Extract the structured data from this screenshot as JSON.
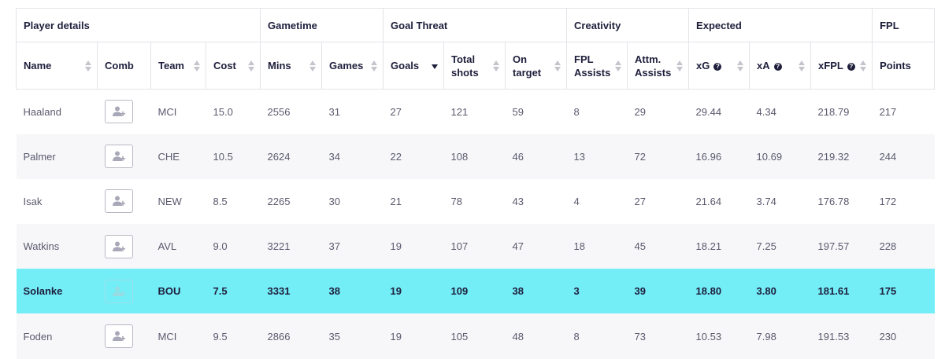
{
  "groups": [
    {
      "label": "Player details",
      "span": 4
    },
    {
      "label": "Gametime",
      "span": 2
    },
    {
      "label": "Goal Threat",
      "span": 3
    },
    {
      "label": "Creativity",
      "span": 2
    },
    {
      "label": "Expected",
      "span": 3
    },
    {
      "label": "FPL",
      "span": 1
    }
  ],
  "columns": [
    {
      "key": "name",
      "label": "Name",
      "sortable": true,
      "info": false
    },
    {
      "key": "comb",
      "label": "Comb",
      "sortable": false,
      "info": false
    },
    {
      "key": "team",
      "label": "Team",
      "sortable": true,
      "info": false
    },
    {
      "key": "cost",
      "label": "Cost",
      "sortable": true,
      "info": false
    },
    {
      "key": "mins",
      "label": "Mins",
      "sortable": true,
      "info": false
    },
    {
      "key": "games",
      "label": "Games",
      "sortable": true,
      "info": false
    },
    {
      "key": "goals",
      "label": "Goals",
      "sortable": true,
      "sorted": "desc",
      "info": false
    },
    {
      "key": "total_shots",
      "label": "Total shots",
      "sortable": true,
      "info": false
    },
    {
      "key": "on_target",
      "label": "On target",
      "sortable": true,
      "info": false
    },
    {
      "key": "fpl_assists",
      "label": "FPL Assists",
      "sortable": true,
      "info": false
    },
    {
      "key": "attm_assists",
      "label": "Attm. Assists",
      "sortable": true,
      "info": false
    },
    {
      "key": "xg",
      "label": "xG",
      "sortable": true,
      "info": true
    },
    {
      "key": "xa",
      "label": "xA",
      "sortable": true,
      "info": true
    },
    {
      "key": "xfpl",
      "label": "xFPL",
      "sortable": true,
      "info": true
    },
    {
      "key": "points",
      "label": "Points",
      "sortable": false,
      "info": false
    }
  ],
  "info_glyph": "?",
  "highlight_color": "#73edf6",
  "rows": [
    {
      "name": "Haaland",
      "team": "MCI",
      "cost": "15.0",
      "mins": "2556",
      "games": "31",
      "goals": "27",
      "total_shots": "121",
      "on_target": "59",
      "fpl_assists": "8",
      "attm_assists": "29",
      "xg": "29.44",
      "xa": "4.34",
      "xfpl": "218.79",
      "points": "217",
      "highlighted": false
    },
    {
      "name": "Palmer",
      "team": "CHE",
      "cost": "10.5",
      "mins": "2624",
      "games": "34",
      "goals": "22",
      "total_shots": "108",
      "on_target": "46",
      "fpl_assists": "13",
      "attm_assists": "72",
      "xg": "16.96",
      "xa": "10.69",
      "xfpl": "219.32",
      "points": "244",
      "highlighted": false
    },
    {
      "name": "Isak",
      "team": "NEW",
      "cost": "8.5",
      "mins": "2265",
      "games": "30",
      "goals": "21",
      "total_shots": "78",
      "on_target": "43",
      "fpl_assists": "4",
      "attm_assists": "27",
      "xg": "21.64",
      "xa": "3.74",
      "xfpl": "176.78",
      "points": "172",
      "highlighted": false
    },
    {
      "name": "Watkins",
      "team": "AVL",
      "cost": "9.0",
      "mins": "3221",
      "games": "37",
      "goals": "19",
      "total_shots": "107",
      "on_target": "47",
      "fpl_assists": "18",
      "attm_assists": "45",
      "xg": "18.21",
      "xa": "7.25",
      "xfpl": "197.57",
      "points": "228",
      "highlighted": false
    },
    {
      "name": "Solanke",
      "team": "BOU",
      "cost": "7.5",
      "mins": "3331",
      "games": "38",
      "goals": "19",
      "total_shots": "109",
      "on_target": "38",
      "fpl_assists": "3",
      "attm_assists": "39",
      "xg": "18.80",
      "xa": "3.80",
      "xfpl": "181.61",
      "points": "175",
      "highlighted": true
    },
    {
      "name": "Foden",
      "team": "MCI",
      "cost": "9.5",
      "mins": "2866",
      "games": "35",
      "goals": "19",
      "total_shots": "105",
      "on_target": "48",
      "fpl_assists": "8",
      "attm_assists": "73",
      "xg": "10.53",
      "xa": "7.98",
      "xfpl": "191.53",
      "points": "230",
      "highlighted": false
    }
  ],
  "comb_icon": "add-user-icon"
}
